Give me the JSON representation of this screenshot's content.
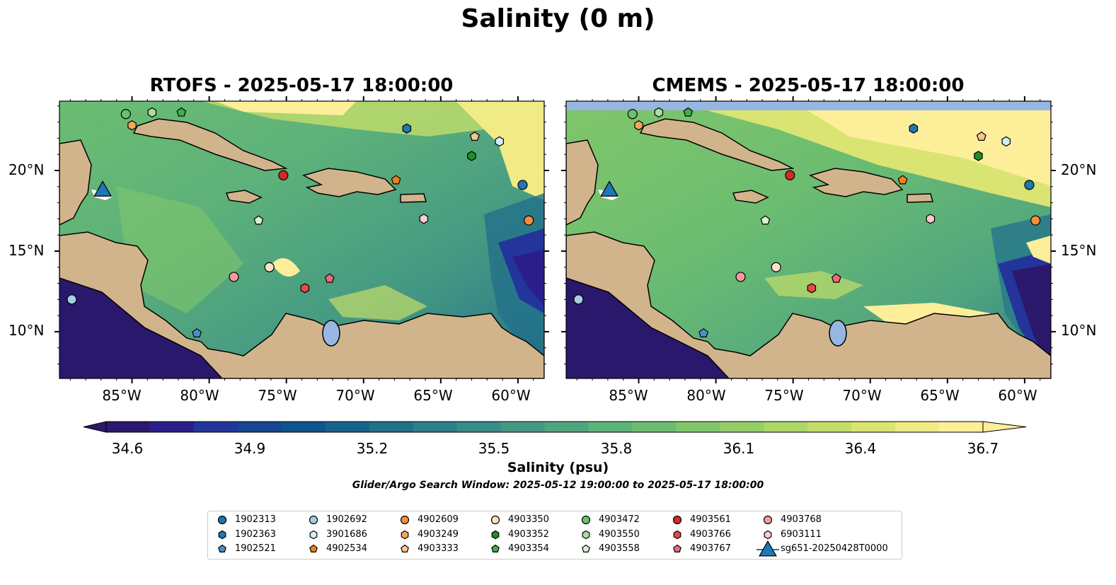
{
  "title": "Salinity (0 m)",
  "panels": [
    {
      "title": "RTOFS - 2025-05-17 18:00:00"
    },
    {
      "title": "CMEMS - 2025-05-17 18:00:00"
    }
  ],
  "lat_ticks": [
    "20°N",
    "15°N",
    "10°N"
  ],
  "lon_ticks": [
    "85°W",
    "80°W",
    "75°W",
    "70°W",
    "65°W",
    "60°W"
  ],
  "colorbar": {
    "label": "Salinity (psu)",
    "ticks": [
      "34.6",
      "34.9",
      "35.2",
      "35.5",
      "35.8",
      "36.1",
      "36.4",
      "36.7"
    ],
    "range": [
      34.6,
      36.7
    ],
    "colormap": "haline",
    "colors": [
      "#2a186c",
      "#2c1e8a",
      "#23359b",
      "#15468f",
      "#0f558d",
      "#17638b",
      "#237189",
      "#2e7f88",
      "#398b87",
      "#449883",
      "#50a57f",
      "#5db17a",
      "#6cbd71",
      "#80c66a",
      "#95ce68",
      "#acd667",
      "#c3dd6a",
      "#d9e473",
      "#f0eb85",
      "#fdee99"
    ]
  },
  "search_window": "Glider/Argo Search Window: 2025-05-12 19:00:00 to 2025-05-17 18:00:00",
  "colors": {
    "land": "#d2b48c",
    "lake": "#97b6e1",
    "ocean_deep": "#2a186c"
  },
  "legend": [
    {
      "id": "1902313",
      "marker": "circle",
      "color": "#1f77b4"
    },
    {
      "id": "1902363",
      "marker": "hexagon",
      "color": "#1f77b4"
    },
    {
      "id": "1902521",
      "marker": "pentagon",
      "color": "#4a90c8"
    },
    {
      "id": "1902692",
      "marker": "circle",
      "color": "#a6cee3"
    },
    {
      "id": "3901686",
      "marker": "hexagon",
      "color": "#d7ecf7"
    },
    {
      "id": "4902534",
      "marker": "pentagon",
      "color": "#f57f17"
    },
    {
      "id": "4902609",
      "marker": "circle",
      "color": "#f58d3b"
    },
    {
      "id": "4903249",
      "marker": "hexagon",
      "color": "#f8a55c"
    },
    {
      "id": "4903333",
      "marker": "pentagon",
      "color": "#fcc48e"
    },
    {
      "id": "4903350",
      "marker": "circle",
      "color": "#fde2c8"
    },
    {
      "id": "4903352",
      "marker": "hexagon",
      "color": "#238b2c"
    },
    {
      "id": "4903354",
      "marker": "pentagon",
      "color": "#3cb04a"
    },
    {
      "id": "4903472",
      "marker": "circle",
      "color": "#6cc16b"
    },
    {
      "id": "4903550",
      "marker": "hexagon",
      "color": "#a8de9f"
    },
    {
      "id": "4903558",
      "marker": "pentagon",
      "color": "#d5f2cd"
    },
    {
      "id": "4903561",
      "marker": "circle",
      "color": "#d62728"
    },
    {
      "id": "4903766",
      "marker": "hexagon",
      "color": "#e34a4a"
    },
    {
      "id": "4903767",
      "marker": "pentagon",
      "color": "#f0687a"
    },
    {
      "id": "4903768",
      "marker": "circle",
      "color": "#f49a9a"
    },
    {
      "id": "6903111",
      "marker": "hexagon",
      "color": "#fccccc"
    },
    {
      "id": "sg651-20250428T0000",
      "marker": "triangle",
      "color": "#1f77b4"
    }
  ],
  "floats": [
    {
      "id": "4903350",
      "lon": -76.1,
      "lat": 14.0
    },
    {
      "id": "4903768",
      "lon": -78.4,
      "lat": 13.4
    },
    {
      "id": "4903561",
      "lon": -75.2,
      "lat": 19.7
    },
    {
      "id": "4903558",
      "lon": -76.8,
      "lat": 16.9
    },
    {
      "id": "4903767",
      "lon": -72.2,
      "lat": 13.3
    },
    {
      "id": "4903766",
      "lon": -73.8,
      "lat": 12.7
    },
    {
      "id": "4902534",
      "lon": -67.9,
      "lat": 19.4
    },
    {
      "id": "6903111",
      "lon": -66.1,
      "lat": 17.0
    },
    {
      "id": "1902363",
      "lon": -67.2,
      "lat": 22.6
    },
    {
      "id": "4903333",
      "lon": -62.8,
      "lat": 22.1
    },
    {
      "id": "3901686",
      "lon": -61.2,
      "lat": 21.8
    },
    {
      "id": "4903352",
      "lon": -63.0,
      "lat": 20.9
    },
    {
      "id": "1902313",
      "lon": -59.7,
      "lat": 19.1
    },
    {
      "id": "4902609",
      "lon": -59.3,
      "lat": 16.9
    },
    {
      "id": "4903472",
      "lon": -85.4,
      "lat": 23.5
    },
    {
      "id": "4903249",
      "lon": -85.0,
      "lat": 22.8
    },
    {
      "id": "4903550",
      "lon": -83.7,
      "lat": 23.6
    },
    {
      "id": "4903354",
      "lon": -81.8,
      "lat": 23.6
    },
    {
      "id": "1902692",
      "lon": -88.9,
      "lat": 12.0
    },
    {
      "id": "1902521",
      "lon": -80.8,
      "lat": 9.9
    }
  ],
  "glider": {
    "id": "sg651-20250428T0000",
    "lon": -86.9,
    "lat": 18.8
  }
}
